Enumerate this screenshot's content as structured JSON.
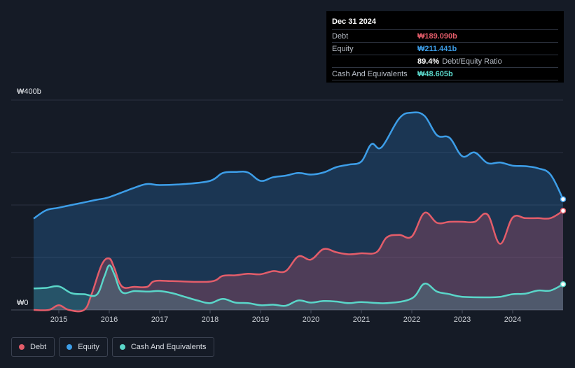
{
  "tooltip": {
    "date": "Dec 31 2024",
    "rows": [
      {
        "name": "Debt",
        "value": "₩189.090b",
        "color": "#e35d6a"
      },
      {
        "name": "Equity",
        "value": "₩211.441b",
        "color": "#3d9ee8"
      },
      {
        "name": "",
        "value": "89.4%",
        "extra": "Debt/Equity Ratio",
        "color": "#ffffff"
      },
      {
        "name": "Cash And Equivalents",
        "value": "₩48.605b",
        "color": "#5ad6c9"
      }
    ]
  },
  "legend": [
    {
      "label": "Debt",
      "color": "#e35d6a"
    },
    {
      "label": "Equity",
      "color": "#3d9ee8"
    },
    {
      "label": "Cash And Equivalents",
      "color": "#5ad6c9"
    }
  ],
  "chart_data": {
    "type": "area",
    "title": "",
    "xlabel": "",
    "ylabel": "",
    "y_top_label": "₩400b",
    "y_bottom_label": "₩0",
    "ylim": [
      0,
      400
    ],
    "xlim": [
      2014.5,
      2025.0
    ],
    "x_ticks": [
      "2015",
      "2016",
      "2017",
      "2018",
      "2019",
      "2020",
      "2021",
      "2022",
      "2023",
      "2024"
    ],
    "grid": true,
    "legend_position": "bottom-left",
    "series": [
      {
        "name": "Equity",
        "color": "#3d9ee8",
        "points": [
          [
            2014.5,
            174
          ],
          [
            2014.75,
            190
          ],
          [
            2015.0,
            195
          ],
          [
            2015.5,
            205
          ],
          [
            2015.75,
            210
          ],
          [
            2016.0,
            215
          ],
          [
            2016.5,
            233
          ],
          [
            2016.75,
            240
          ],
          [
            2017.0,
            238
          ],
          [
            2017.5,
            240
          ],
          [
            2018.0,
            246
          ],
          [
            2018.25,
            261
          ],
          [
            2018.5,
            263
          ],
          [
            2018.75,
            262
          ],
          [
            2019.0,
            246
          ],
          [
            2019.25,
            253
          ],
          [
            2019.5,
            256
          ],
          [
            2019.75,
            261
          ],
          [
            2020.0,
            258
          ],
          [
            2020.25,
            262
          ],
          [
            2020.5,
            272
          ],
          [
            2020.75,
            277
          ],
          [
            2021.0,
            283
          ],
          [
            2021.2,
            316
          ],
          [
            2021.4,
            310
          ],
          [
            2021.75,
            365
          ],
          [
            2022.0,
            376
          ],
          [
            2022.25,
            370
          ],
          [
            2022.5,
            333
          ],
          [
            2022.75,
            328
          ],
          [
            2023.0,
            293
          ],
          [
            2023.25,
            300
          ],
          [
            2023.5,
            280
          ],
          [
            2023.75,
            281
          ],
          [
            2024.0,
            275
          ],
          [
            2024.25,
            274
          ],
          [
            2024.5,
            270
          ],
          [
            2024.75,
            258
          ],
          [
            2025.0,
            211
          ]
        ]
      },
      {
        "name": "Debt",
        "color": "#e35d6a",
        "points": [
          [
            2014.5,
            0
          ],
          [
            2014.8,
            0
          ],
          [
            2015.0,
            9
          ],
          [
            2015.2,
            0
          ],
          [
            2015.5,
            0
          ],
          [
            2015.65,
            30
          ],
          [
            2015.85,
            86
          ],
          [
            2016.0,
            98
          ],
          [
            2016.1,
            80
          ],
          [
            2016.25,
            45
          ],
          [
            2016.5,
            44
          ],
          [
            2016.75,
            44
          ],
          [
            2016.9,
            55
          ],
          [
            2017.25,
            55
          ],
          [
            2018.0,
            54
          ],
          [
            2018.25,
            65
          ],
          [
            2018.5,
            66
          ],
          [
            2018.75,
            69
          ],
          [
            2019.0,
            68
          ],
          [
            2019.25,
            74
          ],
          [
            2019.5,
            74
          ],
          [
            2019.75,
            102
          ],
          [
            2020.0,
            96
          ],
          [
            2020.25,
            116
          ],
          [
            2020.5,
            110
          ],
          [
            2020.75,
            106
          ],
          [
            2021.0,
            108
          ],
          [
            2021.3,
            110
          ],
          [
            2021.5,
            138
          ],
          [
            2021.75,
            143
          ],
          [
            2022.0,
            140
          ],
          [
            2022.25,
            185
          ],
          [
            2022.5,
            166
          ],
          [
            2022.75,
            168
          ],
          [
            2023.0,
            168
          ],
          [
            2023.25,
            168
          ],
          [
            2023.5,
            182
          ],
          [
            2023.75,
            126
          ],
          [
            2024.0,
            176
          ],
          [
            2024.25,
            175
          ],
          [
            2024.5,
            175
          ],
          [
            2024.75,
            175
          ],
          [
            2025.0,
            189
          ]
        ]
      },
      {
        "name": "Cash And Equivalents",
        "color": "#5ad6c9",
        "points": [
          [
            2014.5,
            41
          ],
          [
            2014.75,
            42
          ],
          [
            2015.0,
            45
          ],
          [
            2015.25,
            32
          ],
          [
            2015.5,
            30
          ],
          [
            2015.75,
            29
          ],
          [
            2015.9,
            63
          ],
          [
            2016.0,
            85
          ],
          [
            2016.1,
            68
          ],
          [
            2016.25,
            34
          ],
          [
            2016.5,
            36
          ],
          [
            2016.75,
            35
          ],
          [
            2017.0,
            36
          ],
          [
            2017.25,
            32
          ],
          [
            2017.5,
            25
          ],
          [
            2017.75,
            18
          ],
          [
            2018.0,
            13
          ],
          [
            2018.25,
            21
          ],
          [
            2018.5,
            14
          ],
          [
            2018.75,
            13
          ],
          [
            2019.0,
            9
          ],
          [
            2019.25,
            10
          ],
          [
            2019.5,
            8
          ],
          [
            2019.75,
            18
          ],
          [
            2020.0,
            14
          ],
          [
            2020.25,
            17
          ],
          [
            2020.5,
            16
          ],
          [
            2020.75,
            13
          ],
          [
            2021.0,
            15
          ],
          [
            2021.5,
            13
          ],
          [
            2022.0,
            22
          ],
          [
            2022.25,
            50
          ],
          [
            2022.5,
            35
          ],
          [
            2022.75,
            30
          ],
          [
            2023.0,
            25
          ],
          [
            2023.5,
            24
          ],
          [
            2023.75,
            25
          ],
          [
            2024.0,
            30
          ],
          [
            2024.25,
            31
          ],
          [
            2024.5,
            37
          ],
          [
            2024.75,
            37
          ],
          [
            2025.0,
            49
          ]
        ]
      }
    ]
  }
}
